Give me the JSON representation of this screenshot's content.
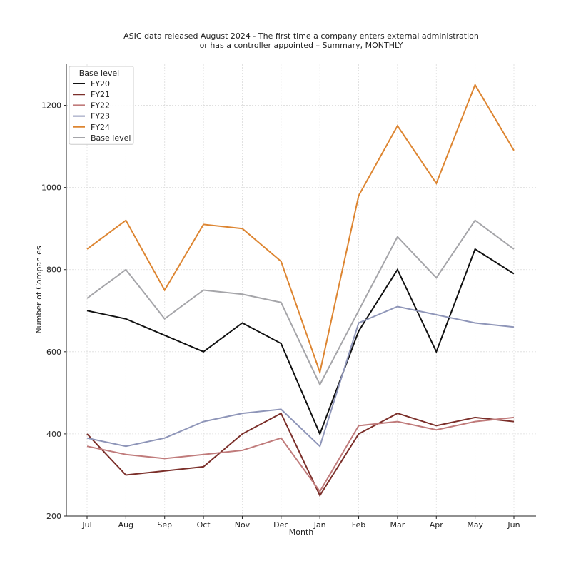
{
  "chart_data": {
    "type": "line",
    "title_line1": "ASIC data released August 2024 - The first time a company enters external administration",
    "title_line2": "or has a controller appointed – Summary, MONTHLY",
    "xlabel": "Month",
    "ylabel": "Number of Companies",
    "categories": [
      "Jul",
      "Aug",
      "Sep",
      "Oct",
      "Nov",
      "Dec",
      "Jan",
      "Feb",
      "Mar",
      "Apr",
      "May",
      "Jun"
    ],
    "ylim": [
      200,
      1300
    ],
    "yticks": [
      200,
      400,
      600,
      800,
      1000,
      1200
    ],
    "grid": true,
    "legend": {
      "title": "Base level",
      "placement": "top-left"
    },
    "series": [
      {
        "name": "FY20",
        "color": "#111111",
        "values": [
          700,
          680,
          640,
          600,
          670,
          620,
          400,
          650,
          800,
          600,
          850,
          790
        ]
      },
      {
        "name": "FY21",
        "color": "#7b2f2a",
        "values": [
          400,
          300,
          310,
          320,
          400,
          450,
          250,
          400,
          450,
          420,
          440,
          430
        ]
      },
      {
        "name": "FY22",
        "color": "#c07b7b",
        "values": [
          370,
          350,
          340,
          350,
          360,
          390,
          260,
          420,
          430,
          410,
          430,
          440
        ]
      },
      {
        "name": "FY23",
        "color": "#8e95b8",
        "values": [
          390,
          370,
          390,
          430,
          450,
          460,
          370,
          670,
          710,
          690,
          670,
          660
        ]
      },
      {
        "name": "FY24",
        "color": "#dd8531",
        "values": [
          850,
          920,
          750,
          910,
          900,
          820,
          550,
          980,
          1150,
          1010,
          1250,
          1090
        ]
      },
      {
        "name": "Base level",
        "color": "#a5a5a9",
        "values": [
          730,
          800,
          680,
          750,
          740,
          720,
          520,
          700,
          880,
          780,
          920,
          850
        ]
      }
    ]
  }
}
